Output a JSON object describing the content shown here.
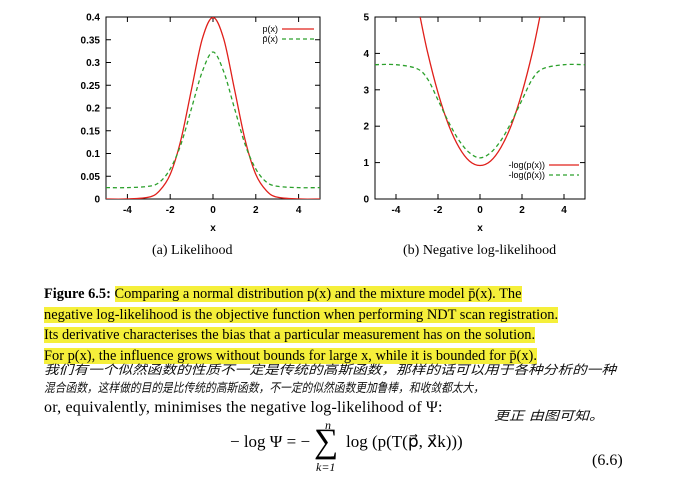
{
  "chart_data": [
    {
      "type": "line",
      "ylim": [
        0,
        0.4
      ],
      "xlim": [
        -5,
        5
      ],
      "xlabel": "x",
      "xticks": [
        "-4",
        "-2",
        "0",
        "2",
        "4"
      ],
      "yticks": [
        "0",
        "0.05",
        "0.1",
        "0.15",
        "0.2",
        "0.25",
        "0.3",
        "0.35",
        "0.4"
      ],
      "legend_position": "top-right",
      "series": [
        {
          "name": "p(x)",
          "color": "#e0201b",
          "style": "solid",
          "x": [
            -5,
            -4,
            -3,
            -2.5,
            -2,
            -1.5,
            -1,
            -0.5,
            0,
            0.5,
            1,
            1.5,
            2,
            2.5,
            3,
            4,
            5
          ],
          "values": [
            0,
            0.0001,
            0.004,
            0.018,
            0.054,
            0.13,
            0.242,
            0.352,
            0.399,
            0.352,
            0.242,
            0.13,
            0.054,
            0.018,
            0.004,
            0.0001,
            0
          ]
        },
        {
          "name": "p̄(x)",
          "color": "#2ca02c",
          "style": "dashed",
          "x": [
            -5,
            -4,
            -3,
            -2.5,
            -2,
            -1.5,
            -1,
            -0.5,
            0,
            0.5,
            1,
            1.5,
            2,
            2.5,
            3,
            4,
            5
          ],
          "values": [
            0.025,
            0.025,
            0.028,
            0.037,
            0.066,
            0.12,
            0.2,
            0.28,
            0.323,
            0.28,
            0.2,
            0.12,
            0.066,
            0.037,
            0.028,
            0.025,
            0.025
          ]
        }
      ]
    },
    {
      "type": "line",
      "ylim": [
        0,
        5
      ],
      "xlim": [
        -5,
        5
      ],
      "xlabel": "x",
      "xticks": [
        "-4",
        "-2",
        "0",
        "2",
        "4"
      ],
      "yticks": [
        "0",
        "1",
        "2",
        "3",
        "4",
        "5"
      ],
      "legend_position": "bottom-right",
      "series": [
        {
          "name": "-log(p(x))",
          "color": "#e0201b",
          "style": "solid",
          "x": [
            -2.85,
            -2.5,
            -2,
            -1.5,
            -1,
            -0.5,
            0,
            0.5,
            1,
            1.5,
            2,
            2.5,
            2.85
          ],
          "values": [
            5,
            4.04,
            2.92,
            2.04,
            1.42,
            1.04,
            0.92,
            1.04,
            1.42,
            2.04,
            2.92,
            4.04,
            5
          ]
        },
        {
          "name": "-log(p̄(x))",
          "color": "#2ca02c",
          "style": "dashed",
          "x": [
            -5,
            -4,
            -3,
            -2.5,
            -2,
            -1.5,
            -1,
            -0.5,
            0,
            0.5,
            1,
            1.5,
            2,
            2.5,
            3,
            4,
            5
          ],
          "values": [
            3.69,
            3.69,
            3.58,
            3.3,
            2.72,
            2.12,
            1.61,
            1.27,
            1.13,
            1.27,
            1.61,
            2.12,
            2.72,
            3.3,
            3.58,
            3.69,
            3.69
          ]
        }
      ]
    }
  ],
  "subcaptions": {
    "a": "(a) Likelihood",
    "b": "(b) Negative log-likelihood"
  },
  "caption": {
    "label": "Figure 6.5:",
    "lines": [
      "Comparing a normal distribution p(x) and the mixture model p̄(x). The",
      "negative log-likelihood is the objective function when performing NDT scan registration.",
      "Its derivative characterises the bias that a particular measurement has on the solution.",
      "For p(x), the influence grows without bounds for large x, while it is bounded for p̄(x)."
    ]
  },
  "handwriting": {
    "line1": "我们有一个似然函数的性质不一定是传统的高斯函数，那样的话可以用于各种分析的一种",
    "line2": "混合函数，这样做的目的是比传统的高斯函数，不一定的似然函数更加鲁棒，和收敛都太大，",
    "line3": "更正 由图可知。"
  },
  "body_text": "or, equivalently, minimises the negative log-likelihood of Ψ:",
  "equation": {
    "lhs": "− log Ψ = −",
    "sum_top": "n",
    "sum_bottom": "k=1",
    "rhs": "log (p(T(p⃗, x⃗k)))",
    "number": "(6.6)"
  }
}
